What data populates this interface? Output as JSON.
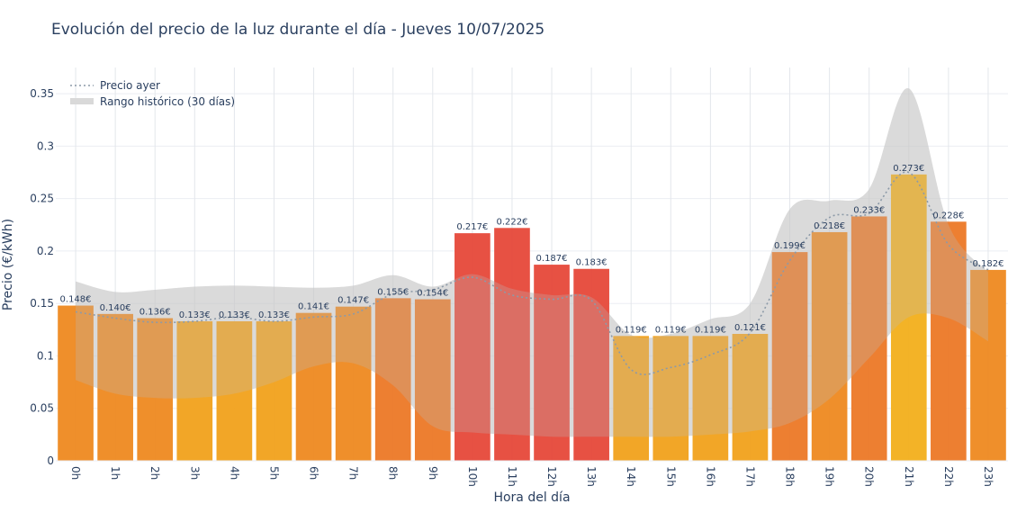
{
  "chart_data": {
    "type": "bar",
    "title": "Evolución del precio de la luz durante el día - Jueves 10/07/2025",
    "xlabel": "Hora del día",
    "ylabel": "Precio (€/kWh)",
    "ylim": [
      0,
      0.375
    ],
    "yticks": [
      0,
      0.05,
      0.1,
      0.15,
      0.2,
      0.25,
      0.3,
      0.35
    ],
    "ytick_labels": [
      "0",
      "0.05",
      "0.1",
      "0.15",
      "0.2",
      "0.25",
      "0.3",
      "0.35"
    ],
    "grid": true,
    "legend_position": "top-left",
    "categories": [
      "0h",
      "1h",
      "2h",
      "3h",
      "4h",
      "5h",
      "6h",
      "7h",
      "8h",
      "9h",
      "10h",
      "11h",
      "12h",
      "13h",
      "14h",
      "15h",
      "16h",
      "17h",
      "18h",
      "19h",
      "20h",
      "21h",
      "22h",
      "23h"
    ],
    "series": [
      {
        "values": [
          0.148,
          0.14,
          0.136,
          0.133,
          0.133,
          0.133,
          0.141,
          0.147,
          0.155,
          0.154,
          0.217,
          0.222,
          0.187,
          0.183,
          0.119,
          0.119,
          0.119,
          0.121,
          0.199,
          0.218,
          0.233,
          0.273,
          0.228,
          0.182
        ],
        "labels": [
          "0.148€",
          "0.140€",
          "0.136€",
          "0.133€",
          "0.133€",
          "0.133€",
          "0.141€",
          "0.147€",
          "0.155€",
          "0.154€",
          "0.217€",
          "0.222€",
          "0.187€",
          "0.183€",
          "0.119€",
          "0.119€",
          "0.119€",
          "0.121€",
          "0.199€",
          "0.218€",
          "0.233€",
          "0.273€",
          "0.228€",
          "0.182€"
        ],
        "colors": [
          "#ee8a22",
          "#ee8a22",
          "#ee8a22",
          "#f1a21e",
          "#f1a21e",
          "#f1a21e",
          "#ee8a22",
          "#ee8a22",
          "#ec7a29",
          "#ec7a29",
          "#e64a3b",
          "#e64a3b",
          "#e64a3b",
          "#e64a3b",
          "#f1a21e",
          "#f1a21e",
          "#f1a21e",
          "#f1a21e",
          "#ec7a29",
          "#ee8a22",
          "#ec7a29",
          "#f2b01e",
          "#ec7a29",
          "#ee8a22"
        ]
      },
      {
        "name": "Precio ayer",
        "style": "dotted-line",
        "color": "#8c9aa8",
        "values": [
          0.142,
          0.136,
          0.132,
          0.133,
          0.137,
          0.133,
          0.137,
          0.14,
          0.159,
          0.163,
          0.175,
          0.158,
          0.154,
          0.153,
          0.087,
          0.089,
          0.101,
          0.122,
          0.191,
          0.232,
          0.236,
          0.275,
          0.206,
          0.182
        ]
      },
      {
        "name": "Rango histórico (30 días)",
        "style": "band",
        "color": "#cfcfcf",
        "lower": [
          0.077,
          0.064,
          0.06,
          0.06,
          0.064,
          0.075,
          0.09,
          0.093,
          0.072,
          0.033,
          0.027,
          0.025,
          0.023,
          0.023,
          0.023,
          0.023,
          0.025,
          0.028,
          0.036,
          0.059,
          0.098,
          0.137,
          0.136,
          0.114
        ],
        "upper": [
          0.171,
          0.161,
          0.163,
          0.166,
          0.167,
          0.166,
          0.165,
          0.167,
          0.177,
          0.166,
          0.178,
          0.164,
          0.158,
          0.156,
          0.12,
          0.121,
          0.135,
          0.15,
          0.24,
          0.248,
          0.259,
          0.355,
          0.225,
          0.18
        ]
      }
    ]
  }
}
